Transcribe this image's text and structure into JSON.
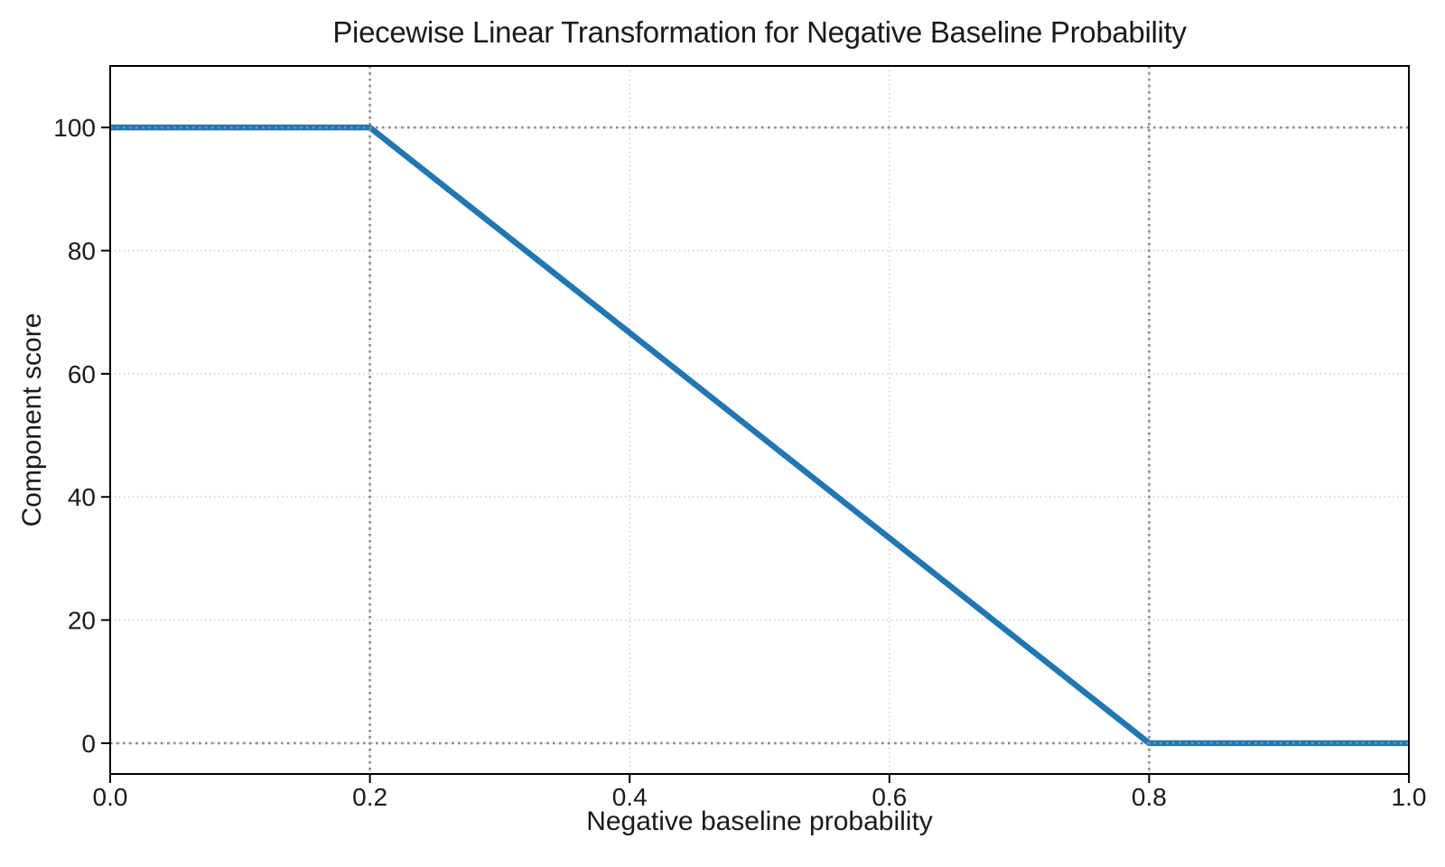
{
  "chart_data": {
    "type": "line",
    "title": "Piecewise Linear Transformation for Negative Baseline Probability",
    "xlabel": "Negative baseline probability",
    "ylabel": "Component score",
    "xlim": [
      0.0,
      1.0
    ],
    "ylim": [
      -5,
      110
    ],
    "x_ticks": [
      0.0,
      0.2,
      0.4,
      0.6,
      0.8,
      1.0
    ],
    "x_tick_labels": [
      "0.0",
      "0.2",
      "0.4",
      "0.6",
      "0.8",
      "1.0"
    ],
    "y_ticks": [
      0,
      20,
      40,
      60,
      80,
      100
    ],
    "y_tick_labels": [
      "0",
      "20",
      "40",
      "60",
      "80",
      "100"
    ],
    "grid": true,
    "grid_style": "dotted",
    "legend": "none",
    "series": [
      {
        "name": "component_score",
        "x": [
          0.0,
          0.2,
          0.8,
          1.0
        ],
        "y": [
          100,
          100,
          0,
          0
        ],
        "color": "#1f77b4",
        "linewidth": 6.5
      }
    ],
    "reference_lines": {
      "vertical_x": [
        0.2,
        0.8
      ],
      "horizontal_y": [
        0,
        100
      ],
      "style": "dotted",
      "color": "#8c8c8c"
    },
    "colors": {
      "background": "#ffffff",
      "grid": "#c6c6c6",
      "spine": "#000000",
      "tick": "#000000",
      "text": "#1a1a1a",
      "line": "#1f77b4"
    }
  }
}
